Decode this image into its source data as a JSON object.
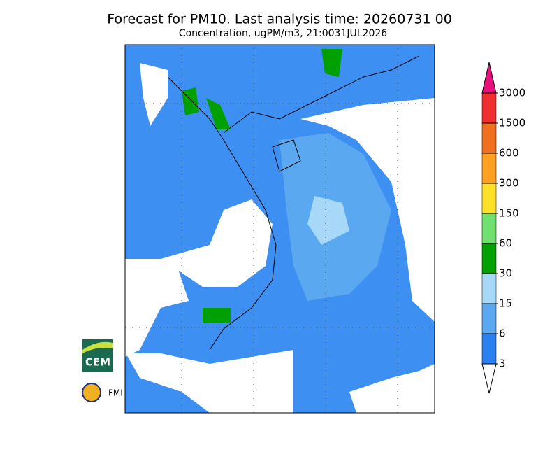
{
  "header": {
    "title": "Forecast for PM10. Last analysis time: 20260731 00",
    "subtitle": "Concentration, ugPM/m3, 21:0031JUL2026"
  },
  "colorbar": {
    "levels": [
      3,
      6,
      15,
      30,
      60,
      150,
      300,
      600,
      1500,
      3000
    ],
    "colors": [
      "#2b80f0",
      "#5aa8f0",
      "#a8d8f8",
      "#00a000",
      "#70e070",
      "#ffe028",
      "#ffa020",
      "#f07020",
      "#f03030"
    ],
    "over_color": "#e8107a",
    "under_color": "#ffffff"
  },
  "logos": {
    "cem": "CEM",
    "fmi": "FMI"
  }
}
